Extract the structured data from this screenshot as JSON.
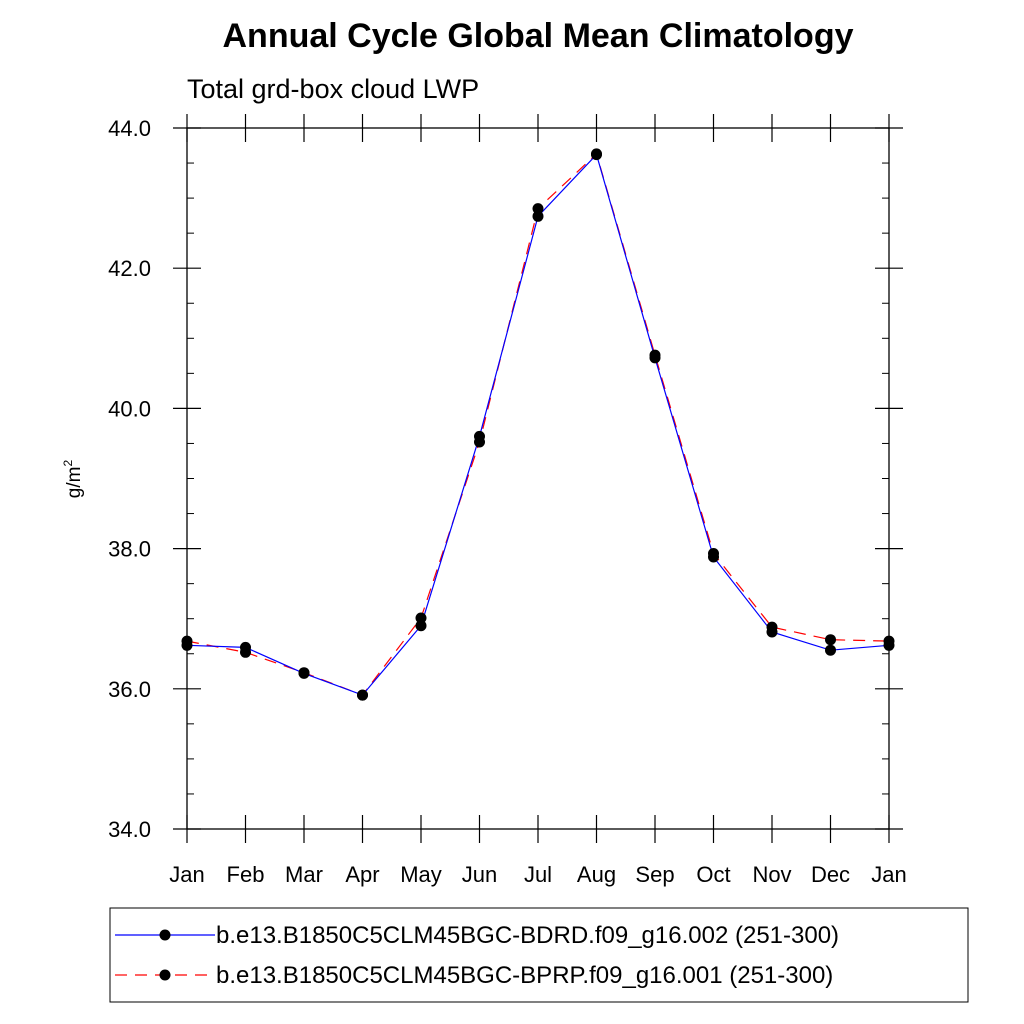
{
  "chart_data": {
    "type": "line",
    "title": "Annual Cycle Global Mean Climatology",
    "subtitle": "Total grd-box cloud LWP",
    "xlabel": "",
    "ylabel": "g/m",
    "ylabel_superscript": "2",
    "categories": [
      "Jan",
      "Feb",
      "Mar",
      "Apr",
      "May",
      "Jun",
      "Jul",
      "Aug",
      "Sep",
      "Oct",
      "Nov",
      "Dec",
      "Jan"
    ],
    "ylim": [
      34.0,
      44.0
    ],
    "yticks": [
      "34.0",
      "36.0",
      "38.0",
      "40.0",
      "42.0",
      "44.0"
    ],
    "series": [
      {
        "name": "b.e13.B1850C5CLM45BGC-BDRD.f09_g16.002 (251-300)",
        "color": "#0000ff",
        "dash": "solid",
        "values": [
          36.62,
          36.59,
          36.22,
          35.91,
          36.9,
          39.6,
          42.74,
          43.62,
          40.72,
          37.88,
          36.81,
          36.55,
          36.62
        ]
      },
      {
        "name": "b.e13.B1850C5CLM45BGC-BPRP.f09_g16.001 (251-300)",
        "color": "#ff0000",
        "dash": "dashed",
        "values": [
          36.68,
          36.52,
          36.23,
          35.91,
          37.01,
          39.52,
          42.85,
          43.63,
          40.76,
          37.93,
          36.88,
          36.7,
          36.68
        ]
      }
    ]
  }
}
